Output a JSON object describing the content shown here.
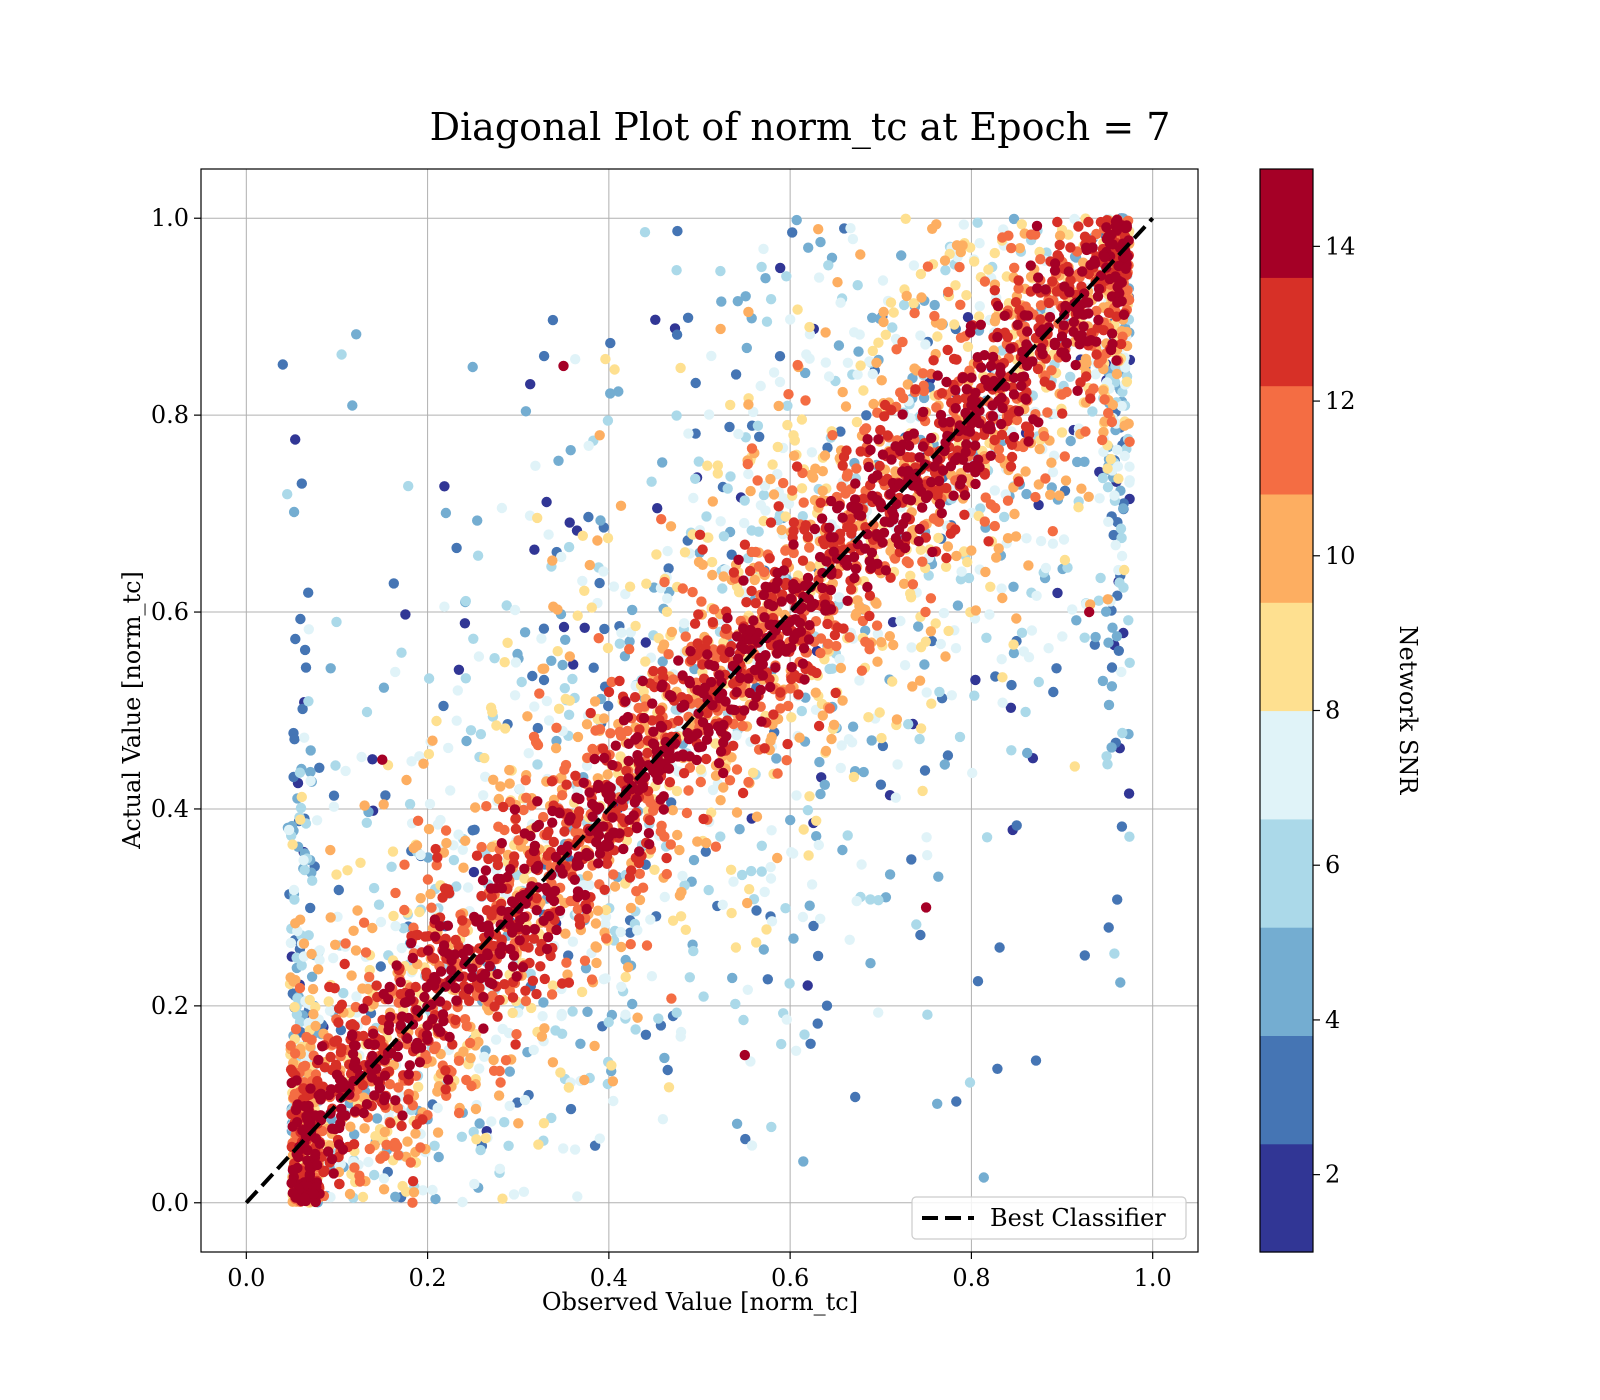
{
  "chart_data": {
    "type": "scatter",
    "title": "Diagonal Plot of norm_tc at Epoch = 7",
    "xlabel": "Observed Value [norm_tc]",
    "ylabel": "Actual Value [norm_tc]",
    "xlim": [
      -0.05,
      1.05
    ],
    "ylim": [
      -0.05,
      1.05
    ],
    "xticks": [
      "0.0",
      "0.2",
      "0.4",
      "0.6",
      "0.8",
      "1.0"
    ],
    "yticks": [
      "0.0",
      "0.2",
      "0.4",
      "0.6",
      "0.8",
      "1.0"
    ],
    "grid": true,
    "legend": {
      "placement": "lower-right",
      "entries": [
        "Best Classifier"
      ]
    },
    "reference_line": {
      "name": "Best Classifier",
      "x": [
        0.0,
        1.0
      ],
      "y": [
        0.0,
        1.0
      ],
      "style": "dashed",
      "color": "#000000"
    },
    "colorbar": {
      "label": "Network SNR",
      "range": [
        1,
        15
      ],
      "ticks": [
        "2",
        "4",
        "6",
        "8",
        "10",
        "12",
        "14"
      ],
      "levels": [
        "#313695",
        "#4575b4",
        "#74add1",
        "#abd9e9",
        "#e0f3f8",
        "#fee090",
        "#fdae61",
        "#f46d43",
        "#d73027",
        "#a50026"
      ]
    },
    "series": [
      {
        "color_by": "Network SNR",
        "x": [
          0.05,
          0.2,
          0.4,
          0.6,
          0.8,
          0.97,
          0.1,
          0.3,
          0.5,
          0.7,
          0.9,
          0.15,
          0.35,
          0.55,
          0.75,
          0.93
        ],
        "y": [
          0.02,
          0.18,
          0.41,
          0.59,
          0.81,
          0.99,
          0.13,
          0.28,
          0.52,
          0.71,
          0.88,
          0.45,
          0.85,
          0.15,
          0.3,
          0.6
        ]
      }
    ]
  }
}
